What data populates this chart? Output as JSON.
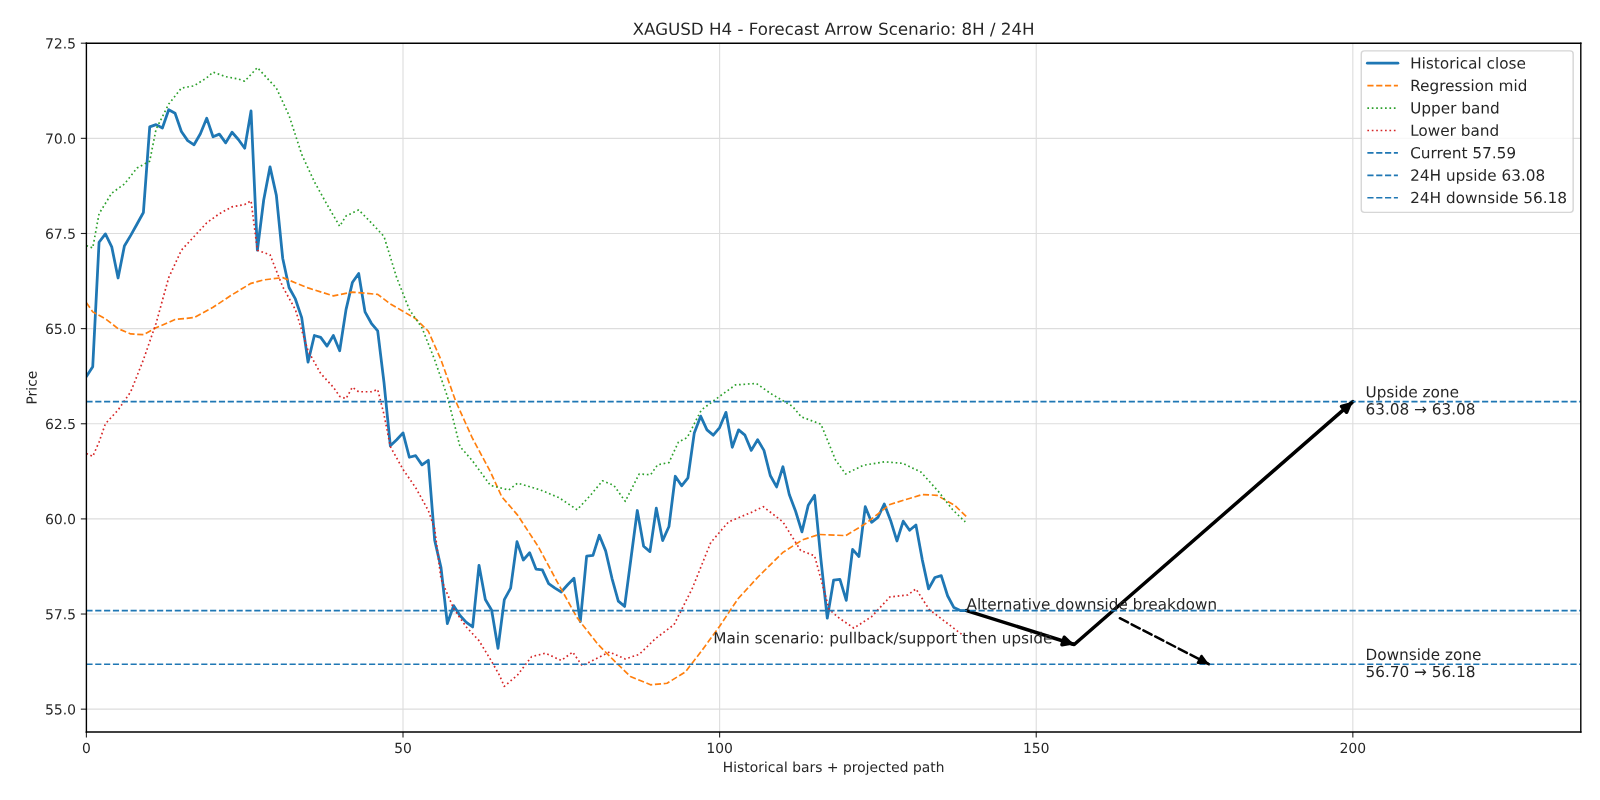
{
  "chart_data": {
    "type": "line",
    "title": "XAGUSD H4 - Forecast Arrow Scenario: 8H / 24H",
    "xlabel": "Historical bars + projected path",
    "ylabel": "Price",
    "xlim": [
      0,
      236
    ],
    "ylim": [
      54.4,
      72.5
    ],
    "xticks": [
      0,
      50,
      100,
      150,
      200
    ],
    "yticks": [
      {
        "value": 55,
        "label": "55.0"
      },
      {
        "value": 57.5,
        "label": "57.5"
      },
      {
        "value": 60,
        "label": "60.0"
      },
      {
        "value": 62.5,
        "label": "62.5"
      },
      {
        "value": 65,
        "label": "65.0"
      },
      {
        "value": 67.5,
        "label": "67.5"
      },
      {
        "value": 70,
        "label": "70.0"
      },
      {
        "value": 72.5,
        "label": "72.5"
      }
    ],
    "grid": true,
    "legend": "top right",
    "series": [
      {
        "name": "Historical close",
        "color": "#1f77b4",
        "line_style": "solid",
        "x": [
          0,
          1,
          2,
          3,
          4,
          5,
          6,
          7,
          8,
          9,
          10,
          11,
          12,
          13,
          14,
          15,
          16,
          17,
          18,
          19,
          20,
          21,
          22,
          23,
          24,
          25,
          26,
          27,
          28,
          29,
          30,
          31,
          32,
          33,
          34,
          35,
          36,
          37,
          38,
          39,
          40,
          41,
          42,
          43,
          44,
          45,
          46,
          47,
          48,
          49,
          50,
          51,
          52,
          53,
          54,
          55,
          56,
          57,
          58,
          59,
          60,
          61,
          62,
          63,
          64,
          65,
          66,
          67,
          68,
          69,
          70,
          71,
          72,
          73,
          74,
          75,
          76,
          77,
          78,
          79,
          80,
          81,
          82,
          83,
          84,
          85,
          86,
          87,
          88,
          89,
          90,
          91,
          92,
          93,
          94,
          95,
          96,
          97,
          98,
          99,
          100,
          101,
          102,
          103,
          104,
          105,
          106,
          107,
          108,
          109,
          110,
          111,
          112,
          113,
          114,
          115,
          116,
          117,
          118,
          119,
          120,
          121,
          122,
          123,
          124,
          125,
          126,
          127,
          128,
          129,
          130,
          131,
          132,
          133,
          134,
          135,
          136,
          137,
          138,
          139
        ],
        "values": [
          63.74,
          64.0,
          67.27,
          67.49,
          67.15,
          66.33,
          67.17,
          67.45,
          67.75,
          68.05,
          70.3,
          70.36,
          70.27,
          70.75,
          70.66,
          70.18,
          69.94,
          69.83,
          70.12,
          70.53,
          70.04,
          70.11,
          69.88,
          70.16,
          69.97,
          69.74,
          70.72,
          67.06,
          68.38,
          69.25,
          68.5,
          66.85,
          66.08,
          65.78,
          65.29,
          64.12,
          64.82,
          64.77,
          64.54,
          64.82,
          64.42,
          65.5,
          66.21,
          66.45,
          65.44,
          65.14,
          64.94,
          63.58,
          61.92,
          62.08,
          62.26,
          61.62,
          61.66,
          61.42,
          61.54,
          59.44,
          58.72,
          57.25,
          57.72,
          57.46,
          57.28,
          57.16,
          58.78,
          57.88,
          57.6,
          56.6,
          57.88,
          58.18,
          59.4,
          58.92,
          59.11,
          58.68,
          58.66,
          58.3,
          58.18,
          58.08,
          58.27,
          58.44,
          57.3,
          59.02,
          59.04,
          59.57,
          59.16,
          58.44,
          57.84,
          57.7,
          58.96,
          60.22,
          59.28,
          59.14,
          60.28,
          59.43,
          59.8,
          61.12,
          60.87,
          61.08,
          62.26,
          62.7,
          62.34,
          62.2,
          62.4,
          62.8,
          61.88,
          62.34,
          62.2,
          61.8,
          62.08,
          61.8,
          61.14,
          60.84,
          61.37,
          60.64,
          60.2,
          59.66,
          60.36,
          60.62,
          58.93,
          57.39,
          58.39,
          58.41,
          57.86,
          59.2,
          59.01,
          60.32,
          59.91,
          60.04,
          60.39,
          59.96,
          59.42,
          59.94,
          59.7,
          59.84,
          58.93,
          58.16,
          58.46,
          58.51,
          57.98,
          57.67,
          57.59,
          57.59
        ]
      },
      {
        "name": "Regression mid",
        "color": "#ff7f0e",
        "line_style": "dashed",
        "x": [
          0,
          1,
          3,
          5,
          7,
          9,
          11,
          14,
          17,
          20,
          23,
          26,
          28,
          31,
          35,
          39,
          42,
          46,
          48,
          52,
          54,
          56,
          58.3,
          60.9,
          63.8,
          65.6,
          68.1,
          71.4,
          74.3,
          77.5,
          80.8,
          83.3,
          85.9,
          89.1,
          91.7,
          94.6,
          97.1,
          100,
          102.9,
          106.1,
          110,
          113.1,
          115.7,
          119.9,
          123,
          126.9,
          132,
          134.3,
          137.1,
          139.1
        ],
        "values": [
          65.68,
          65.44,
          65.26,
          65.0,
          64.86,
          64.84,
          65.02,
          65.24,
          65.29,
          65.56,
          65.89,
          66.19,
          66.28,
          66.34,
          66.07,
          65.86,
          65.96,
          65.9,
          65.65,
          65.26,
          64.93,
          64.18,
          63.1,
          62.14,
          61.24,
          60.58,
          60.1,
          59.26,
          58.36,
          57.4,
          56.7,
          56.28,
          55.86,
          55.64,
          55.68,
          55.98,
          56.52,
          57.18,
          57.9,
          58.48,
          59.12,
          59.45,
          59.59,
          59.56,
          59.87,
          60.38,
          60.64,
          60.62,
          60.36,
          60.04
        ]
      },
      {
        "name": "Upper band",
        "color": "#2ca02c",
        "line_style": "dotted",
        "x": [
          0,
          1,
          2,
          4,
          6,
          8,
          10,
          11,
          13,
          15,
          17,
          19,
          20,
          22,
          24,
          25,
          27,
          28,
          30,
          32,
          34,
          36,
          38,
          40,
          41,
          43,
          45,
          47,
          49,
          51,
          53,
          55,
          57,
          59,
          60.9,
          63.8,
          66.7,
          68.1,
          71.7,
          74.6,
          77.5,
          79.7,
          81.5,
          83.3,
          85.1,
          87.3,
          89.1,
          90.2,
          92,
          93.5,
          94.9,
          97.1,
          100,
          102.5,
          105.8,
          108.1,
          111.5,
          112.9,
          116,
          118.3,
          119.9,
          122.7,
          126.1,
          128.9,
          131.8,
          134.6,
          136.8,
          138.8
        ],
        "values": [
          67.18,
          67.12,
          68.02,
          68.56,
          68.8,
          69.22,
          69.4,
          70.24,
          70.9,
          71.32,
          71.38,
          71.59,
          71.74,
          71.62,
          71.56,
          71.5,
          71.86,
          71.68,
          71.32,
          70.6,
          69.58,
          68.86,
          68.26,
          67.69,
          67.96,
          68.12,
          67.78,
          67.42,
          66.34,
          65.5,
          65.02,
          64.18,
          63.22,
          61.9,
          61.54,
          60.88,
          60.76,
          60.94,
          60.76,
          60.56,
          60.24,
          60.64,
          61.0,
          60.88,
          60.46,
          61.18,
          61.16,
          61.42,
          61.48,
          62.02,
          62.14,
          62.86,
          63.22,
          63.52,
          63.56,
          63.29,
          62.96,
          62.68,
          62.49,
          61.55,
          61.18,
          61.41,
          61.5,
          61.46,
          61.23,
          60.71,
          60.24,
          59.92
        ]
      },
      {
        "name": "Lower band",
        "color": "#d62728",
        "line_style": "dotted",
        "x": [
          0,
          1,
          2,
          3,
          5,
          7,
          9,
          11,
          13,
          15,
          17,
          19,
          21,
          23,
          25,
          26,
          27,
          29,
          31,
          33,
          35,
          37,
          39,
          40,
          41,
          42,
          43,
          45,
          46,
          47,
          48,
          50,
          52,
          54,
          55,
          56,
          58,
          60,
          62,
          63.8,
          65.2,
          66,
          68.1,
          70.3,
          72.5,
          75,
          76.8,
          78.3,
          80.4,
          82.6,
          85.1,
          87.3,
          89.9,
          92.8,
          95.7,
          98.6,
          101.4,
          105,
          106.9,
          110,
          112.8,
          115,
          117.3,
          118.9,
          121.2,
          124,
          126.9,
          129.7,
          131,
          133.1,
          135.3,
          138.2
        ],
        "values": [
          61.72,
          61.64,
          62.02,
          62.5,
          62.86,
          63.34,
          64.18,
          65.14,
          66.34,
          67.06,
          67.42,
          67.78,
          68.02,
          68.2,
          68.26,
          68.36,
          67.06,
          66.94,
          66.1,
          65.5,
          64.42,
          63.82,
          63.46,
          63.22,
          63.16,
          63.46,
          63.34,
          63.34,
          63.4,
          62.74,
          61.9,
          61.3,
          60.82,
          60.22,
          59.74,
          58.42,
          57.64,
          57.16,
          56.8,
          56.31,
          55.9,
          55.6,
          55.9,
          56.38,
          56.47,
          56.28,
          56.5,
          56.14,
          56.32,
          56.5,
          56.32,
          56.44,
          56.86,
          57.22,
          58.18,
          59.38,
          59.92,
          60.17,
          60.32,
          59.92,
          59.17,
          59.03,
          57.62,
          57.39,
          57.13,
          57.43,
          57.95,
          58.0,
          58.16,
          57.62,
          57.34,
          56.97
        ]
      },
      {
        "color": "#000000",
        "line_style": "solid",
        "x": [
          139,
          156,
          200
        ],
        "values": [
          57.59,
          56.7,
          63.08
        ]
      },
      {
        "color": "#000000",
        "line_style": "dashed",
        "x": [
          163.2,
          177.3
        ],
        "values": [
          57.39,
          56.18
        ]
      }
    ],
    "ref_lines": [
      {
        "axis": "y",
        "value": 57.59,
        "label": "Current 57.59",
        "color": "#1f77b4",
        "line_style": "dashed"
      },
      {
        "axis": "y",
        "value": 63.08,
        "label": "24H upside 63.08",
        "color": "#1f77b4",
        "line_style": "dashed"
      },
      {
        "axis": "y",
        "value": 56.18,
        "label": "24H downside 56.18",
        "color": "#1f77b4",
        "line_style": "dashed"
      }
    ],
    "annotations": [
      {
        "text": "Main scenario: pullback/support then upside",
        "x": 99,
        "y": 56.84
      },
      {
        "text": "Alternative downside breakdown",
        "x": 139,
        "y": 57.73
      },
      {
        "text": "Upside zone\n63.08 → 63.08",
        "x": 202,
        "y": 63.08
      },
      {
        "text": "Downside zone\n56.70 → 56.18",
        "x": 202,
        "y": 56.18
      }
    ]
  }
}
